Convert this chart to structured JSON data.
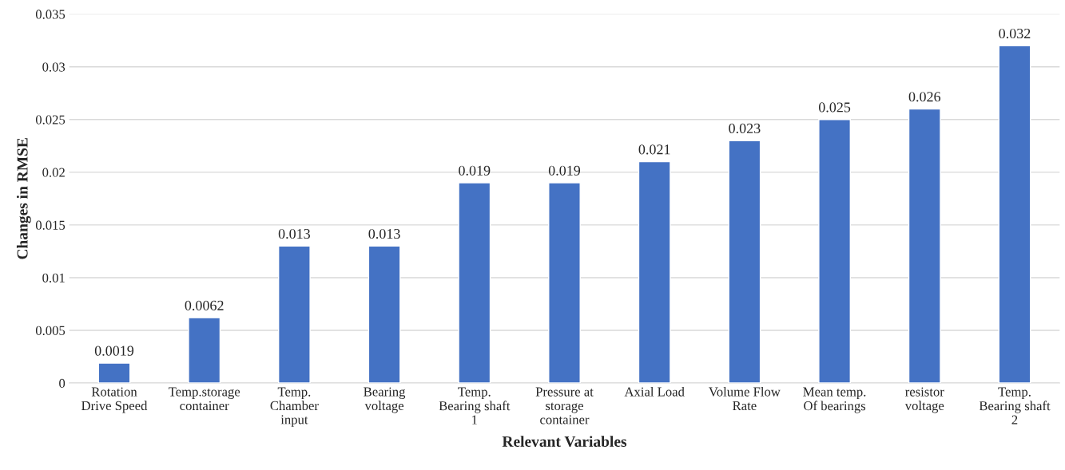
{
  "chart_data": {
    "type": "bar",
    "xlabel": "Relevant Variables",
    "ylabel": "Changes in RMSE",
    "categories": [
      "Rotation\nDrive Speed",
      "Temp.storage\ncontainer",
      "Temp.\nChamber\ninput",
      "Bearing\nvoltage",
      "Temp.\nBearing shaft\n1",
      "Pressure at\nstorage\ncontainer",
      "Axial Load",
      "Volume Flow\nRate",
      "Mean temp.\nOf bearings",
      "resistor\nvoltage",
      "Temp.\nBearing shaft\n2"
    ],
    "values": [
      0.0019,
      0.0062,
      0.013,
      0.013,
      0.019,
      0.019,
      0.021,
      0.023,
      0.025,
      0.026,
      0.032
    ],
    "color": "#4472c4",
    "ylim": [
      0,
      0.035
    ],
    "yticks": [
      0,
      0.005,
      0.01,
      0.015,
      0.02,
      0.025,
      0.03,
      0.035
    ],
    "grid": "y",
    "data_labels": true
  }
}
